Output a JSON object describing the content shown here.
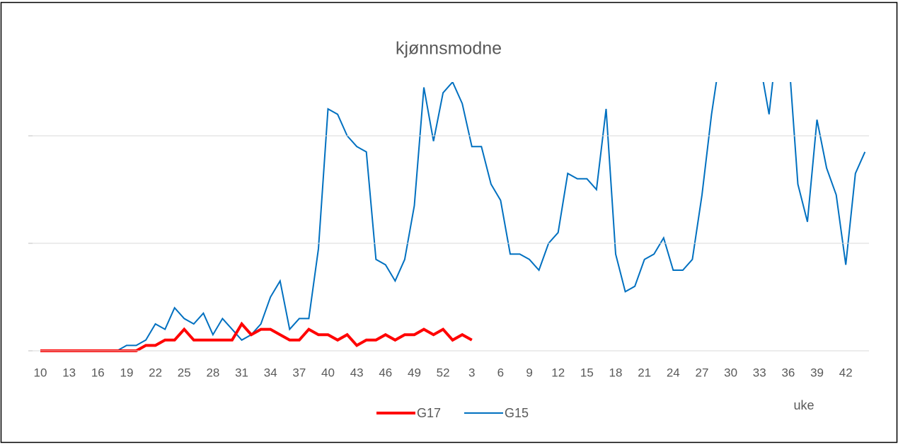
{
  "chart_data": {
    "type": "line",
    "title": "kjønnsmodne",
    "x_label": "uke",
    "categories": [
      "10",
      null,
      null,
      "13",
      null,
      null,
      "16",
      null,
      null,
      "19",
      null,
      null,
      "22",
      null,
      null,
      "25",
      null,
      null,
      "28",
      null,
      null,
      "31",
      null,
      null,
      "34",
      null,
      null,
      "37",
      null,
      null,
      "40",
      null,
      null,
      "43",
      null,
      null,
      "46",
      null,
      null,
      "49",
      null,
      null,
      "52",
      null,
      null,
      "3",
      null,
      null,
      "6",
      null,
      null,
      "9",
      null,
      null,
      "12",
      null,
      null,
      "15",
      null,
      null,
      "18",
      null,
      null,
      "21",
      null,
      null,
      "24",
      null,
      null,
      "27",
      null,
      null,
      "30",
      null,
      null,
      "33",
      null,
      null,
      "36",
      null,
      null,
      "39",
      null,
      null,
      "42",
      null,
      null
    ],
    "series": [
      {
        "name": "G17",
        "color": "#ff0000",
        "values": [
          0,
          0,
          0,
          0,
          0,
          0,
          0,
          0,
          0,
          0,
          0,
          0.5,
          0.5,
          1,
          1,
          2,
          1,
          1,
          1,
          1,
          1,
          2.5,
          1.5,
          2,
          2,
          1.5,
          1,
          1,
          2,
          1.5,
          1.5,
          1,
          1.5,
          0.5,
          1,
          1,
          1.5,
          1,
          1.5,
          1.5,
          2,
          1.5,
          2,
          1,
          1.5,
          1,
          null,
          null,
          null,
          null,
          null,
          null,
          null,
          null,
          null,
          null,
          null,
          null,
          null,
          null,
          null,
          null,
          null,
          null,
          null,
          null,
          null,
          null,
          null,
          null,
          null,
          null,
          null,
          null,
          null,
          null,
          null,
          null,
          null,
          null,
          null,
          null,
          null,
          null,
          null,
          null,
          null
        ]
      },
      {
        "name": "G15",
        "color": "#0070c0",
        "values": [
          0,
          0,
          0,
          0,
          0,
          0,
          0,
          0,
          0,
          0.5,
          0.5,
          1,
          2.5,
          2,
          4,
          3,
          2.5,
          3.5,
          1.5,
          3,
          2,
          1,
          1.5,
          2.5,
          5,
          6.5,
          2,
          3,
          3,
          9.5,
          22.5,
          22,
          20,
          19,
          18.5,
          8.5,
          8,
          6.5,
          8.5,
          13.5,
          24.5,
          19.5,
          24,
          25,
          23,
          19,
          19,
          15.5,
          14,
          9,
          9,
          8.5,
          7.5,
          10,
          11,
          16.5,
          16,
          16,
          15,
          22.5,
          9,
          5.5,
          6,
          8.5,
          9,
          10.5,
          7.5,
          7.5,
          8.5,
          14.5,
          22,
          28,
          32,
          33,
          30,
          27,
          22,
          30,
          28,
          15.5,
          12,
          21.5,
          17,
          14.5,
          8,
          16.5,
          18.5
        ]
      }
    ],
    "ylim": [
      0,
      25
    ],
    "yticks": [
      0,
      10,
      20
    ],
    "grid": true,
    "legend": "bottom"
  }
}
